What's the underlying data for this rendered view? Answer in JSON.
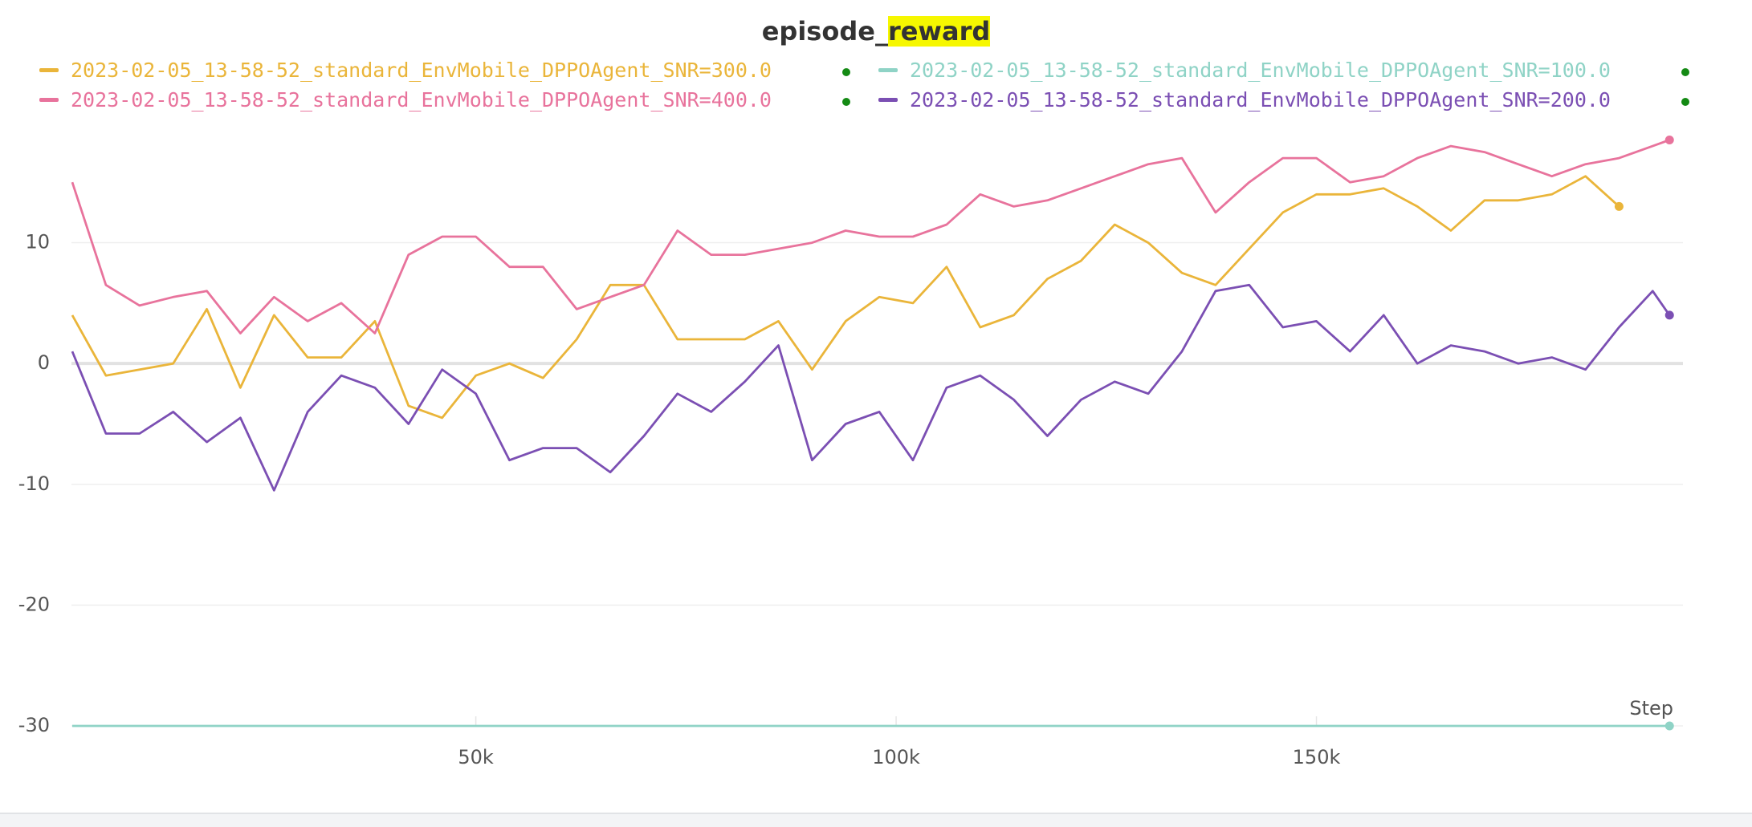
{
  "chart_data": {
    "type": "line",
    "title": "episode_",
    "title_highlight": "reward",
    "x_label": "Step",
    "xlim": [
      1900,
      193600
    ],
    "ylim": [
      -30,
      19
    ],
    "xticks": [
      {
        "value": 50000,
        "label": "50k"
      },
      {
        "value": 100000,
        "label": "100k"
      },
      {
        "value": 150000,
        "label": "150k"
      }
    ],
    "yticks": [
      -30,
      -20,
      -10,
      0,
      10
    ],
    "grid": true,
    "x": [
      2000,
      6000,
      10000,
      14000,
      18000,
      22000,
      26000,
      30000,
      34000,
      38000,
      42000,
      46000,
      50000,
      54000,
      58000,
      62000,
      66000,
      70000,
      74000,
      78000,
      82000,
      86000,
      90000,
      94000,
      98000,
      102000,
      106000,
      110000,
      114000,
      118000,
      122000,
      126000,
      130000,
      134000,
      138000,
      142000,
      146000,
      150000,
      154000,
      158000,
      162000,
      166000,
      170000,
      174000,
      178000,
      182000,
      186000,
      190000,
      192000
    ],
    "series": [
      {
        "name": "2023-02-05_13-58-52_standard_EnvMobile_DPPOAgent_SNR=300.0",
        "color": "#eab53a",
        "values": [
          4,
          -1,
          -0.5,
          0,
          4.5,
          -2,
          4,
          0.5,
          0.5,
          3.5,
          -3.5,
          -4.5,
          -1,
          0,
          -1.2,
          2,
          6.5,
          6.5,
          2,
          2,
          2,
          3.5,
          -0.5,
          3.5,
          5.5,
          5,
          8,
          3,
          4,
          7,
          8.5,
          11.5,
          10,
          7.5,
          6.5,
          9.5,
          12.5,
          14,
          14,
          14.5,
          13,
          11,
          13.5,
          13.5,
          14,
          15.5,
          13,
          null,
          null
        ]
      },
      {
        "name": "2023-02-05_13-58-52_standard_EnvMobile_DPPOAgent_SNR=100.0",
        "color": "#8fd3c6",
        "values": [
          -30,
          -30,
          -30,
          -30,
          -30,
          -30,
          -30,
          -30,
          -30,
          -30,
          -30,
          -30,
          -30,
          -30,
          -30,
          -30,
          -30,
          -30,
          -30,
          -30,
          -30,
          -30,
          -30,
          -30,
          -30,
          -30,
          -30,
          -30,
          -30,
          -30,
          -30,
          -30,
          -30,
          -30,
          -30,
          -30,
          -30,
          -30,
          -30,
          -30,
          -30,
          -30,
          -30,
          -30,
          -30,
          -30,
          -30,
          -30,
          -30
        ]
      },
      {
        "name": "2023-02-05_13-58-52_standard_EnvMobile_DPPOAgent_SNR=400.0",
        "color": "#e8739c",
        "values": [
          15,
          6.5,
          4.8,
          5.5,
          6,
          2.5,
          5.5,
          3.5,
          5,
          2.5,
          9,
          10.5,
          10.5,
          8,
          8,
          4.5,
          5.5,
          6.5,
          11,
          9,
          9,
          9.5,
          10,
          11,
          10.5,
          10.5,
          11.5,
          14,
          13,
          13.5,
          14.5,
          15.5,
          16.5,
          17,
          12.5,
          15,
          17,
          17,
          15,
          15.5,
          17,
          18,
          17.5,
          16.5,
          15.5,
          16.5,
          17,
          18,
          18.5
        ]
      },
      {
        "name": "2023-02-05_13-58-52_standard_EnvMobile_DPPOAgent_SNR=200.0",
        "color": "#7b4fb3",
        "values": [
          1,
          -5.8,
          -5.8,
          -4,
          -6.5,
          -4.5,
          -10.5,
          -4,
          -1,
          -2,
          -5,
          -0.5,
          -2.5,
          -8,
          -7,
          -7,
          -9,
          -6,
          -2.5,
          -4,
          -1.5,
          1.5,
          -8,
          -5,
          -4,
          -8,
          -2,
          -1,
          -3,
          -6,
          -3,
          -1.5,
          -2.5,
          1,
          6,
          6.5,
          3,
          3.5,
          1,
          4,
          0,
          1.5,
          1,
          0,
          0.5,
          -0.5,
          3,
          6,
          4
        ]
      }
    ]
  }
}
